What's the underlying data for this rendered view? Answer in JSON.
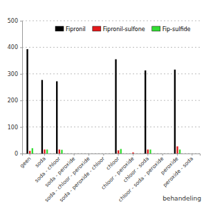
{
  "chart_data": {
    "type": "bar",
    "x_label": "behandeling",
    "categories": [
      "geen",
      "soda",
      "soda - chloor",
      "soda - peroxide",
      "soda - chloor - peroxide",
      "soda - peroxide - chloor",
      "chloor",
      "chloor - peroxide",
      "chloor - soda",
      "chloor - soda - peroxide",
      "peroxide",
      "peroxide - soda"
    ],
    "series": [
      {
        "name": "Fipronil",
        "color": "#000000",
        "values": [
          393,
          277,
          272,
          0,
          0,
          0,
          355,
          0,
          313,
          0,
          316,
          0
        ]
      },
      {
        "name": "Fipronil-sulfone",
        "color": "#e41a1c",
        "values": [
          10,
          15,
          15,
          0,
          0,
          0,
          12,
          4,
          15,
          0,
          27,
          0
        ]
      },
      {
        "name": "Fip-sulfide",
        "color": "#33dd33",
        "values": [
          20,
          15,
          14,
          0,
          0,
          0,
          17,
          0,
          15,
          0,
          15,
          0
        ]
      }
    ],
    "ylim": [
      0,
      500
    ],
    "yticks": [
      0,
      100,
      200,
      300,
      400,
      500
    ],
    "grid": true,
    "legend": "top"
  }
}
